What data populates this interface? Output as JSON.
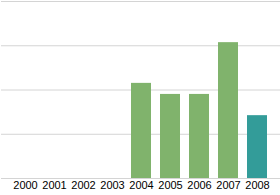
{
  "chart_data": {
    "type": "bar",
    "categories": [
      "2000",
      "2001",
      "2002",
      "2003",
      "2004",
      "2005",
      "2006",
      "2007",
      "2008"
    ],
    "values": [
      null,
      null,
      null,
      null,
      2.15,
      1.9,
      1.9,
      3.07,
      1.42
    ],
    "colors": [
      "#80b36c",
      "#80b36c",
      "#80b36c",
      "#80b36c",
      "#80b36c",
      "#80b36c",
      "#80b36c",
      "#80b36c",
      "#339c99"
    ],
    "ylim": [
      0,
      4
    ],
    "yticks": [
      0,
      1,
      2,
      3,
      4
    ],
    "grid": true,
    "tick_labels": "x"
  }
}
